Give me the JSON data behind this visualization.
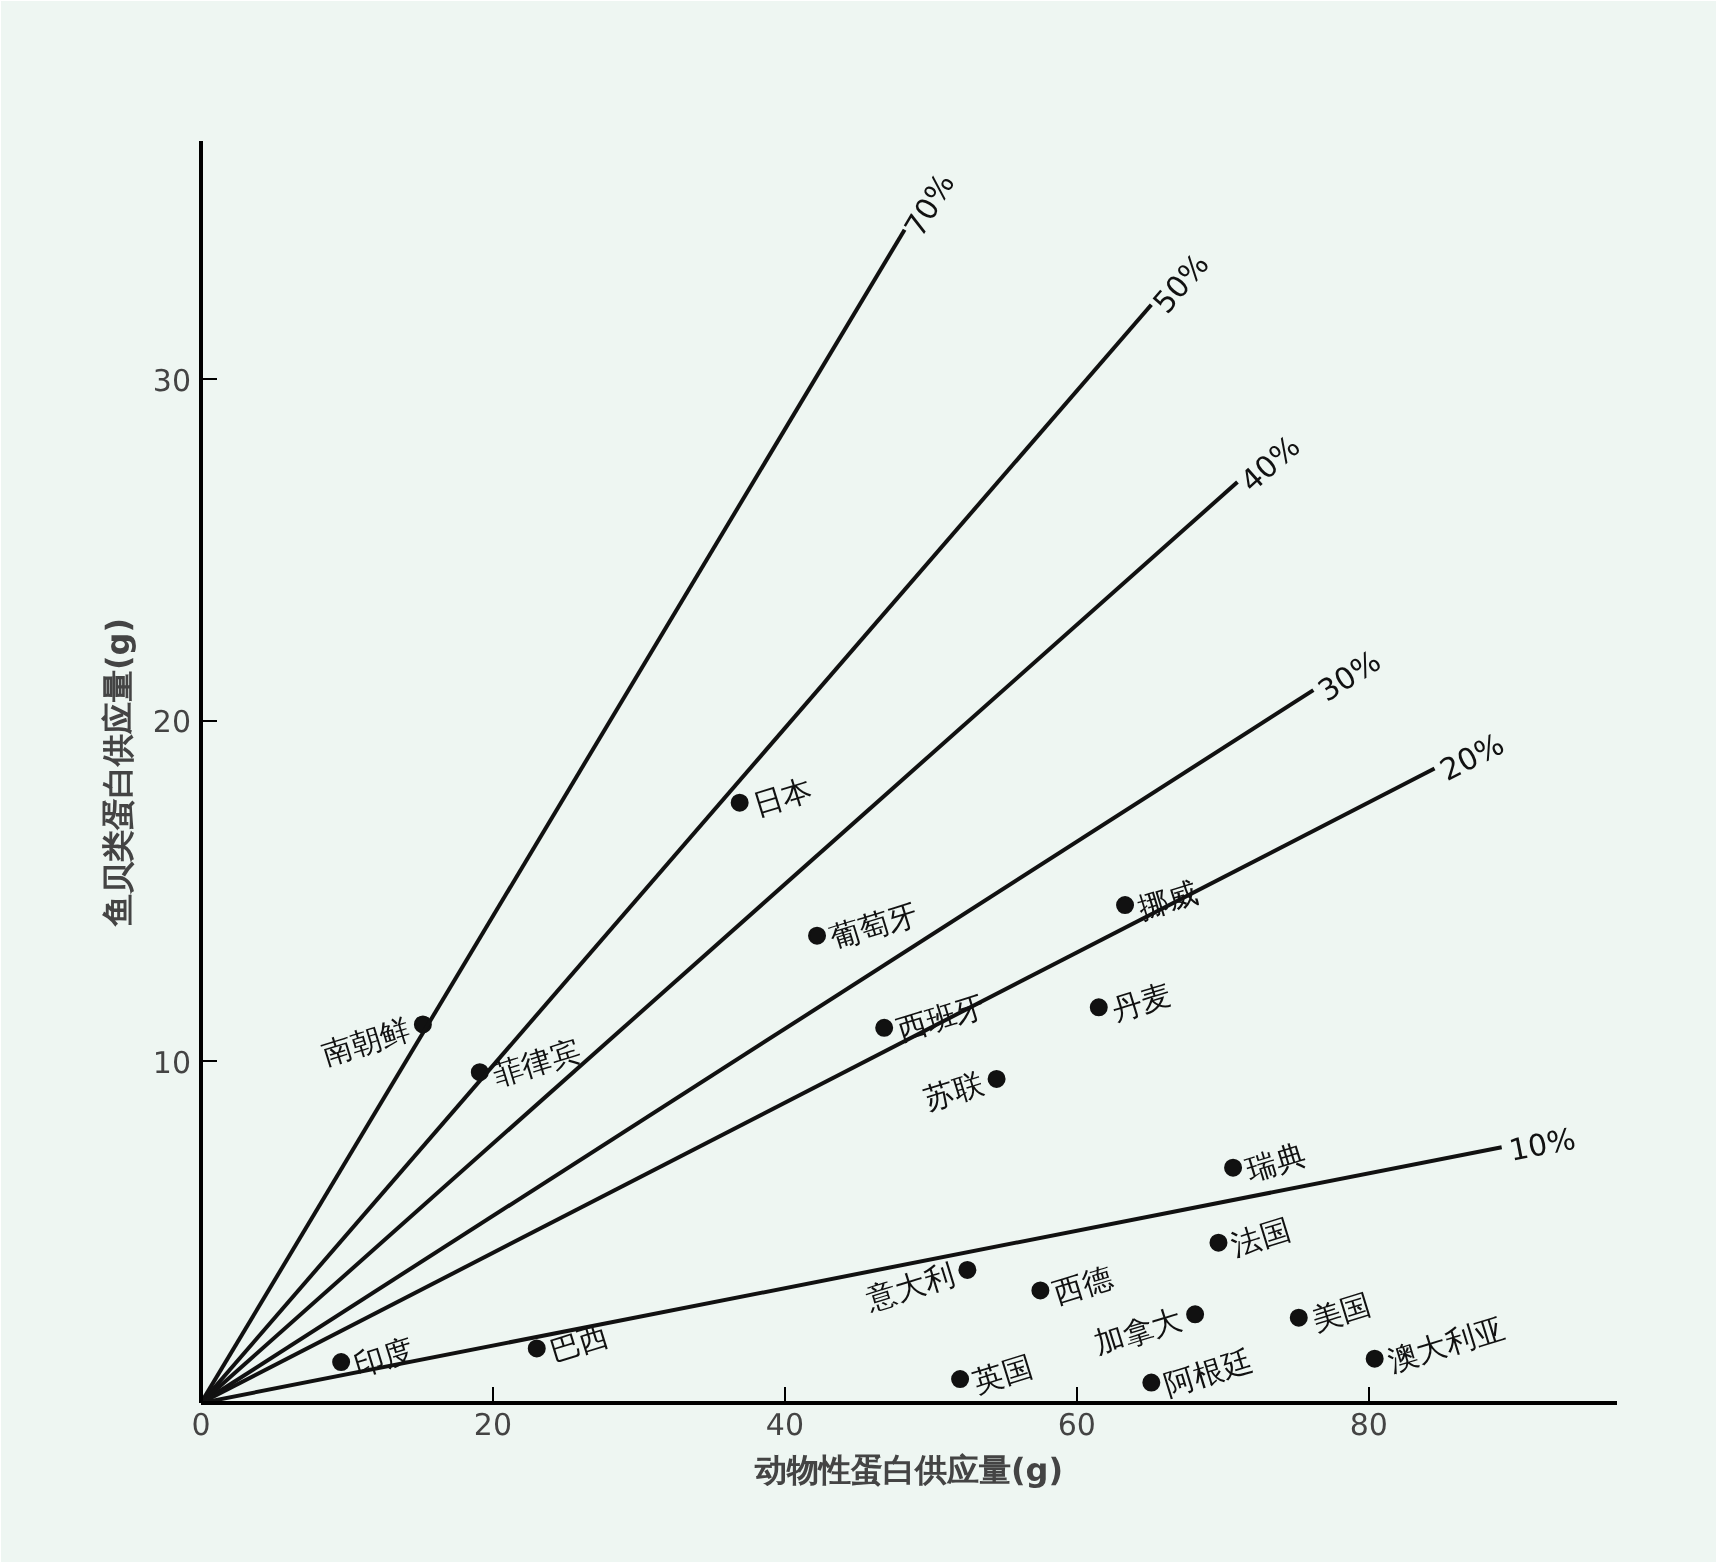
{
  "chart_data": {
    "type": "scatter",
    "xlabel": "动物性蛋白供应量(g)",
    "ylabel": "鱼贝类蛋白供应量(g)",
    "xlim": [
      0,
      97
    ],
    "ylim": [
      0,
      37
    ],
    "xticks": [
      0,
      20,
      40,
      60,
      80
    ],
    "yticks": [
      10,
      20,
      30
    ],
    "grid": false,
    "series": [
      {
        "marker": "circle",
        "color": "#111111",
        "x": [
          15.2,
          19.1,
          36.9,
          42.2,
          46.8,
          54.5,
          63.3,
          61.5,
          70.7,
          69.7,
          52.5,
          57.5,
          68.1,
          75.2,
          9.6,
          23.0,
          52.0,
          65.1,
          80.4
        ],
        "values": [
          11.1,
          9.7,
          17.6,
          13.7,
          11.0,
          9.5,
          14.6,
          11.6,
          6.9,
          4.7,
          3.9,
          3.3,
          2.6,
          2.5,
          1.2,
          1.6,
          0.7,
          0.6,
          1.3
        ]
      },
      {
        "type": "line",
        "name": "70%",
        "color": "#111111",
        "x": [
          0,
          48.2
        ],
        "values": [
          0,
          34.4
        ]
      },
      {
        "type": "line",
        "name": "50%",
        "color": "#111111",
        "x": [
          0,
          65.1
        ],
        "values": [
          0,
          32.2
        ]
      },
      {
        "type": "line",
        "name": "40%",
        "color": "#111111",
        "x": [
          0,
          71.0
        ],
        "values": [
          0,
          27.0
        ]
      },
      {
        "type": "line",
        "name": "30%",
        "color": "#111111",
        "x": [
          0,
          76.2
        ],
        "values": [
          0,
          20.9
        ]
      },
      {
        "type": "line",
        "name": "20%",
        "color": "#111111",
        "x": [
          0,
          84.5
        ],
        "values": [
          0,
          18.6
        ]
      },
      {
        "type": "line",
        "name": "10%",
        "color": "#111111",
        "x": [
          0,
          89.1
        ],
        "values": [
          0,
          7.5
        ]
      }
    ],
    "annotations": [
      {
        "text": "南朝鲜",
        "x": 15.2,
        "y": 11.1
      },
      {
        "text": "菲律宾",
        "x": 19.1,
        "y": 9.7
      },
      {
        "text": "日本",
        "x": 36.9,
        "y": 17.6
      },
      {
        "text": "葡萄牙",
        "x": 42.2,
        "y": 13.7
      },
      {
        "text": "西班牙",
        "x": 46.8,
        "y": 11.0
      },
      {
        "text": "苏联",
        "x": 54.5,
        "y": 9.5
      },
      {
        "text": "挪威",
        "x": 63.3,
        "y": 14.6
      },
      {
        "text": "丹麦",
        "x": 61.5,
        "y": 11.6
      },
      {
        "text": "瑞典",
        "x": 70.7,
        "y": 6.9
      },
      {
        "text": "法国",
        "x": 69.7,
        "y": 4.7
      },
      {
        "text": "意大利",
        "x": 52.5,
        "y": 3.9
      },
      {
        "text": "西德",
        "x": 57.5,
        "y": 3.3
      },
      {
        "text": "加拿大",
        "x": 68.1,
        "y": 2.6
      },
      {
        "text": "美国",
        "x": 75.2,
        "y": 2.5
      },
      {
        "text": "印度",
        "x": 9.6,
        "y": 1.2
      },
      {
        "text": "巴西",
        "x": 23.0,
        "y": 1.6
      },
      {
        "text": "英国",
        "x": 52.0,
        "y": 0.7
      },
      {
        "text": "阿根廷",
        "x": 65.1,
        "y": 0.6
      },
      {
        "text": "澳大利亚",
        "x": 80.4,
        "y": 1.3
      }
    ]
  }
}
